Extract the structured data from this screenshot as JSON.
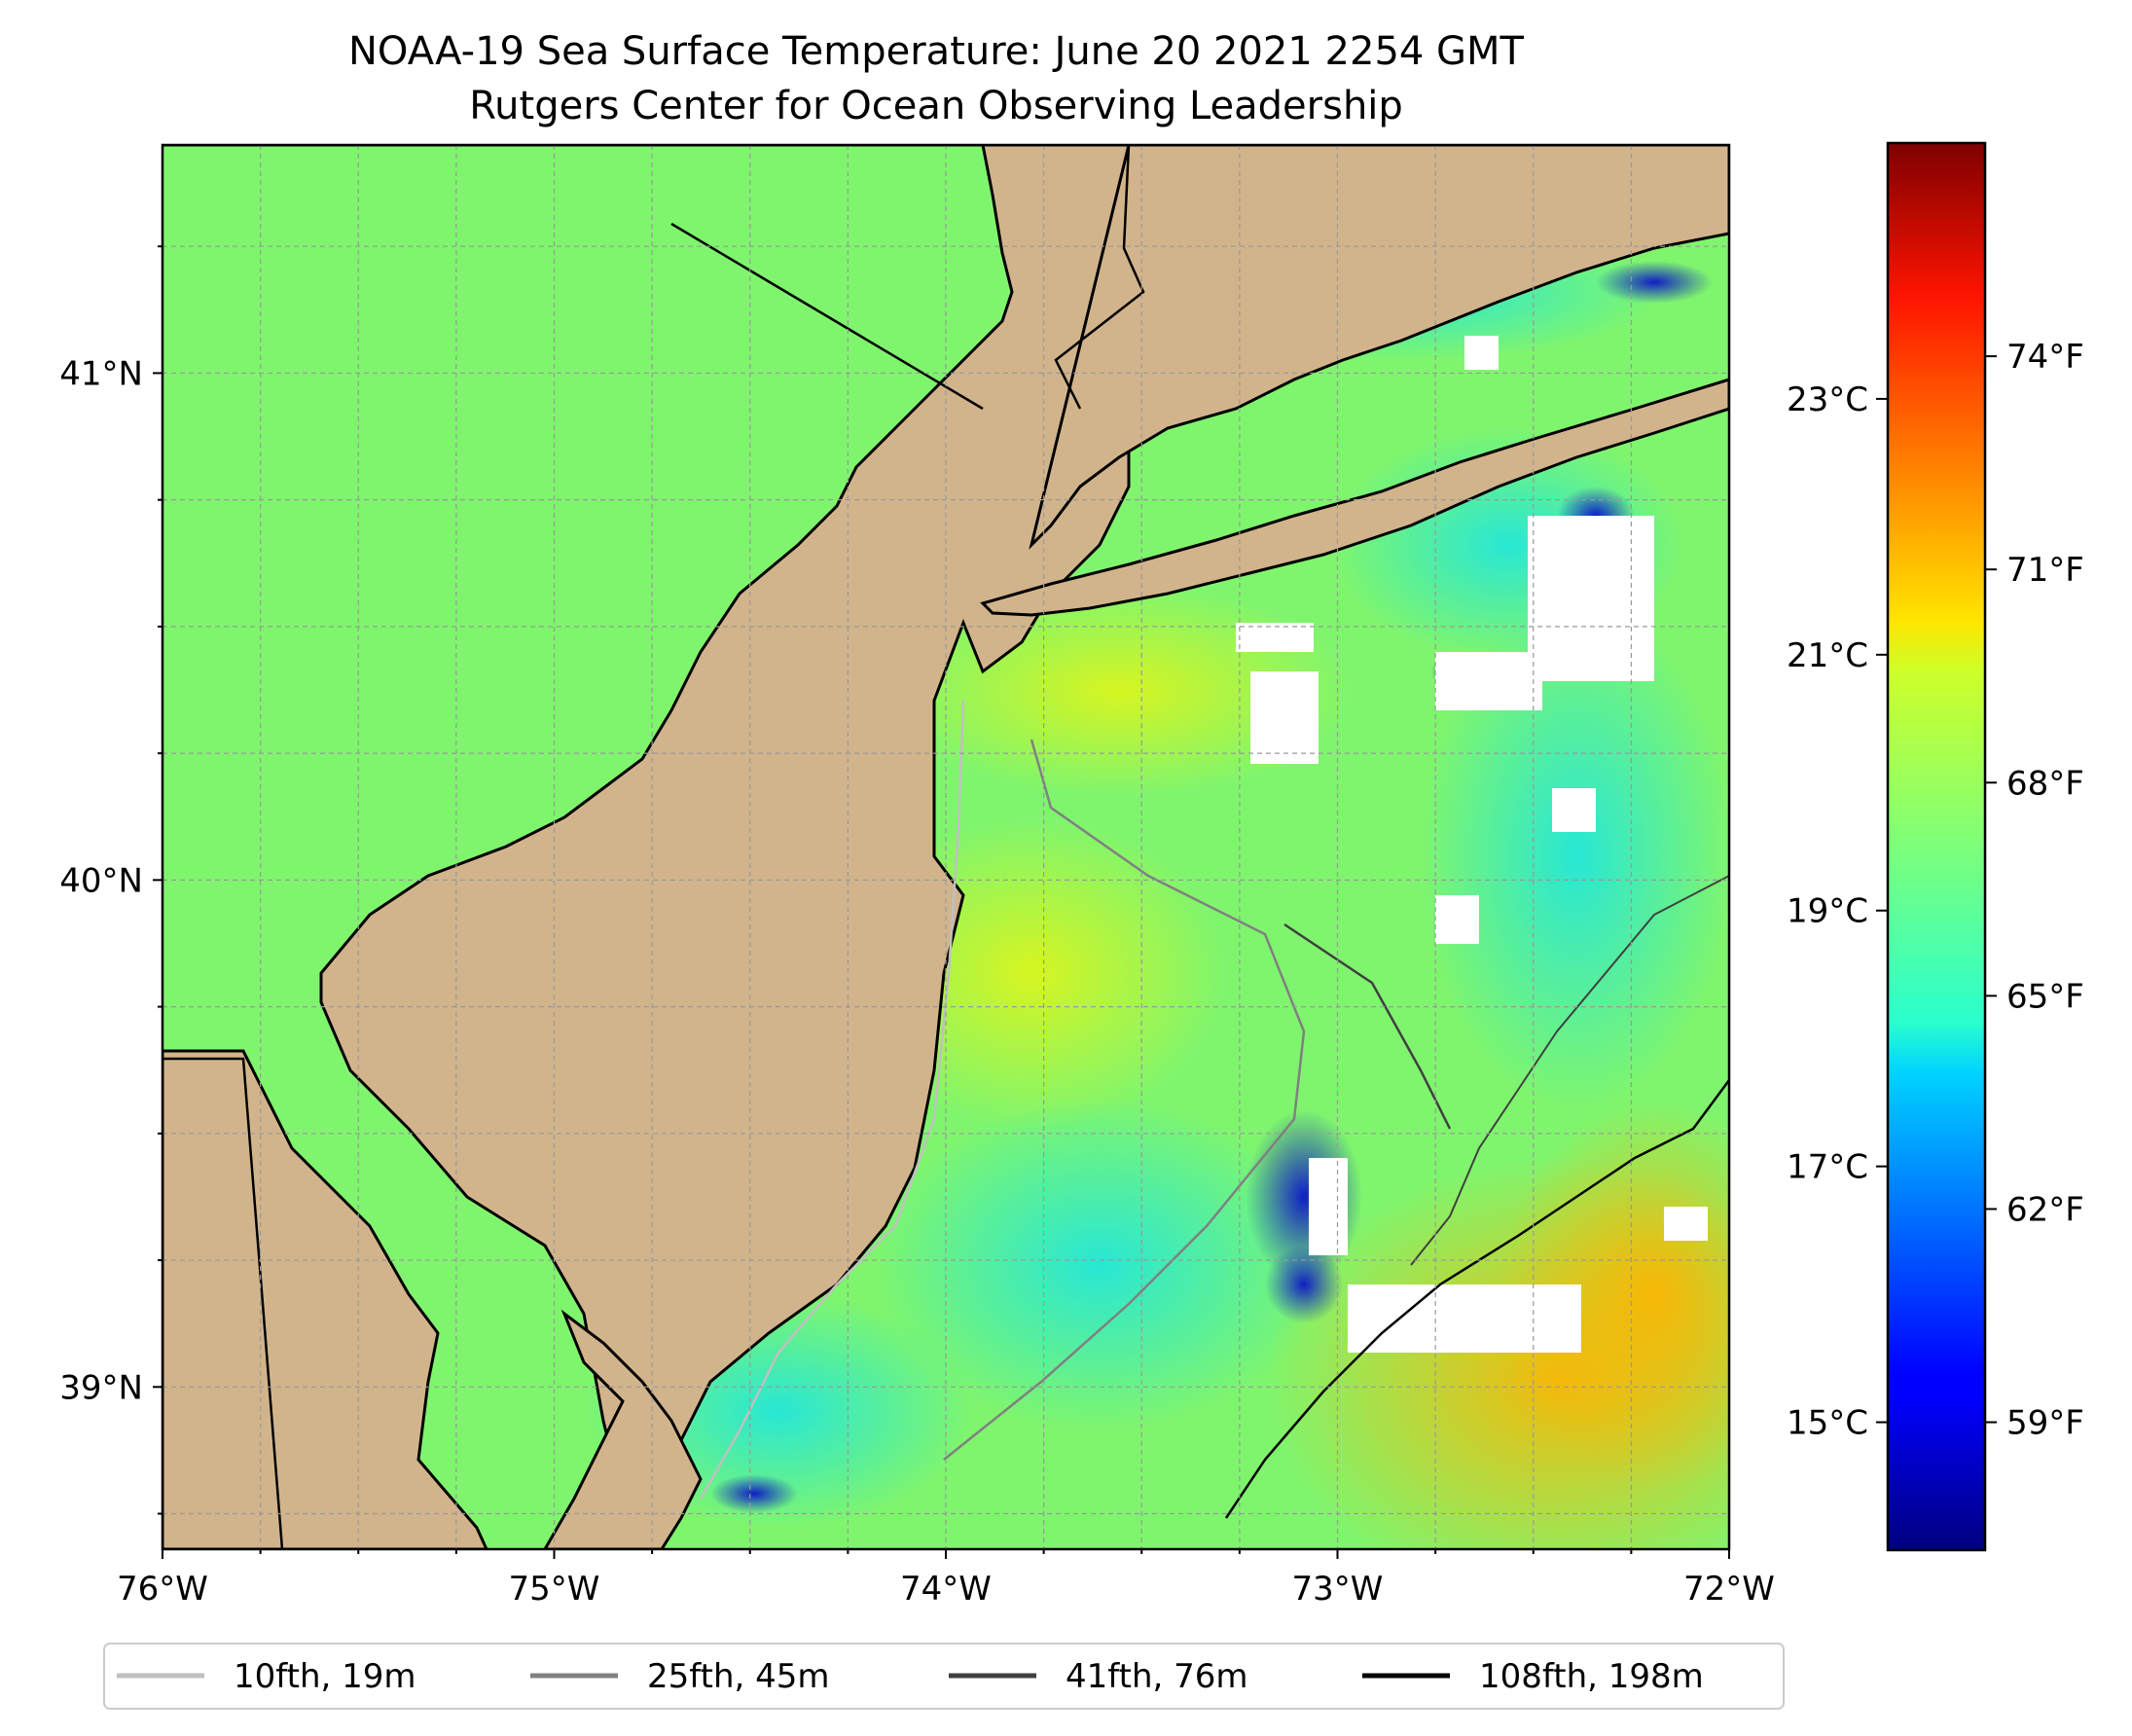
{
  "title": {
    "line1": "NOAA-19 Sea Surface Temperature: June 20 2021 2254 GMT",
    "line2": "Rutgers Center for Ocean Observing Leadership"
  },
  "map": {
    "lon_range": [
      -76,
      -72
    ],
    "lat_range": [
      38.68,
      41.45
    ],
    "lon_ticks": [
      {
        "value": -76,
        "label": "76°W"
      },
      {
        "value": -75,
        "label": "75°W"
      },
      {
        "value": -74,
        "label": "74°W"
      },
      {
        "value": -73,
        "label": "73°W"
      },
      {
        "value": -72,
        "label": "72°W"
      }
    ],
    "lat_ticks": [
      {
        "value": 39,
        "label": "39°N"
      },
      {
        "value": 40,
        "label": "40°N"
      },
      {
        "value": 41,
        "label": "41°N"
      }
    ],
    "land_color": "#d2b48c",
    "grid": true
  },
  "colorbar": {
    "colormap": "jet",
    "celsius_ticks": [
      {
        "value": 15,
        "label": "15°C"
      },
      {
        "value": 17,
        "label": "17°C"
      },
      {
        "value": 19,
        "label": "19°C"
      },
      {
        "value": 21,
        "label": "21°C"
      },
      {
        "value": 23,
        "label": "23°C"
      }
    ],
    "fahrenheit_ticks": [
      {
        "value": 59,
        "label": "59°F"
      },
      {
        "value": 62,
        "label": "62°F"
      },
      {
        "value": 65,
        "label": "65°F"
      },
      {
        "value": 68,
        "label": "68°F"
      },
      {
        "value": 71,
        "label": "71°F"
      },
      {
        "value": 74,
        "label": "74°F"
      }
    ]
  },
  "legend": {
    "placement": "bottom",
    "items": [
      {
        "label": "10fth, 19m",
        "color": "#c0c0c0"
      },
      {
        "label": "25fth, 45m",
        "color": "#808080"
      },
      {
        "label": "41fth, 76m",
        "color": "#404040"
      },
      {
        "label": "108fth, 198m",
        "color": "#000000"
      }
    ]
  }
}
